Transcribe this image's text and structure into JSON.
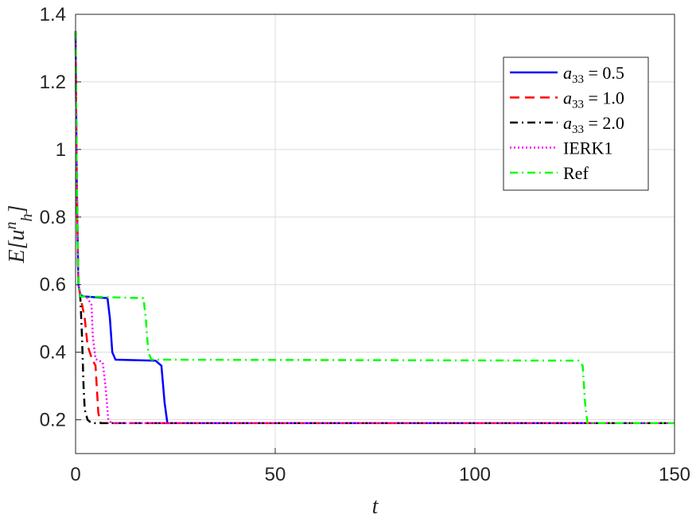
{
  "chart_data": {
    "type": "line",
    "xlabel": "t",
    "ylabel": "E[u_h^n]",
    "xlim": [
      0,
      150
    ],
    "ylim": [
      0.1,
      1.4
    ],
    "xticks": [
      0,
      50,
      100,
      150
    ],
    "yticks": [
      0.2,
      0.4,
      0.6,
      0.8,
      1,
      1.2,
      1.4
    ],
    "xtick_labels": [
      "0",
      "50",
      "100",
      "150"
    ],
    "ytick_labels": [
      "0.2",
      "0.4",
      "0.6",
      "0.8",
      "1",
      "1.2",
      "1.4"
    ],
    "grid": true,
    "legend_position": "top-right",
    "series": [
      {
        "name": "a33 = 0.5",
        "color": "#0000ff",
        "dash": "solid",
        "x": [
          0,
          0.3,
          0.7,
          1.2,
          2,
          8,
          8.6,
          9.2,
          10,
          20,
          21.5,
          22.3,
          23,
          150
        ],
        "y": [
          1.35,
          0.9,
          0.6,
          0.57,
          0.565,
          0.56,
          0.5,
          0.4,
          0.378,
          0.375,
          0.36,
          0.25,
          0.19,
          0.19
        ]
      },
      {
        "name": "a33 = 1.0",
        "color": "#ff0000",
        "dash": "dashed",
        "x": [
          0,
          0.3,
          0.7,
          1.3,
          2.3,
          3,
          4.1,
          5,
          5.3,
          5.7,
          6.3,
          150
        ],
        "y": [
          1.35,
          0.9,
          0.6,
          0.56,
          0.5,
          0.42,
          0.38,
          0.36,
          0.3,
          0.22,
          0.19,
          0.19
        ]
      },
      {
        "name": "a33 = 2.0",
        "color": "#000000",
        "dash": "dashdot",
        "x": [
          0,
          0.3,
          0.7,
          1.2,
          1.6,
          2,
          2.3,
          3,
          4,
          150
        ],
        "y": [
          1.35,
          0.9,
          0.6,
          0.56,
          0.45,
          0.3,
          0.23,
          0.2,
          0.19,
          0.19
        ]
      },
      {
        "name": "IERK1",
        "color": "#ff00ff",
        "dash": "dotted",
        "x": [
          0,
          0.3,
          0.7,
          1.2,
          3,
          4,
          4.3,
          5,
          6.8,
          7.5,
          8.2,
          9,
          150
        ],
        "y": [
          1.35,
          0.9,
          0.6,
          0.57,
          0.56,
          0.54,
          0.45,
          0.38,
          0.37,
          0.3,
          0.2,
          0.19,
          0.19
        ]
      },
      {
        "name": "Ref",
        "color": "#00ff00",
        "dash": "dashdot",
        "x": [
          0,
          0.3,
          0.7,
          1.2,
          17,
          17.6,
          18.2,
          19,
          126,
          127,
          127.6,
          128.2,
          150
        ],
        "y": [
          1.35,
          0.9,
          0.6,
          0.565,
          0.56,
          0.5,
          0.4,
          0.378,
          0.375,
          0.36,
          0.25,
          0.19,
          0.19
        ]
      }
    ]
  },
  "legend": {
    "entries": [
      {
        "base": "a",
        "sub": "33",
        "rest": " = 0.5"
      },
      {
        "base": "a",
        "sub": "33",
        "rest": " = 1.0"
      },
      {
        "base": "a",
        "sub": "33",
        "rest": " = 2.0"
      },
      {
        "text": "IERK1"
      },
      {
        "text": "Ref"
      }
    ]
  }
}
